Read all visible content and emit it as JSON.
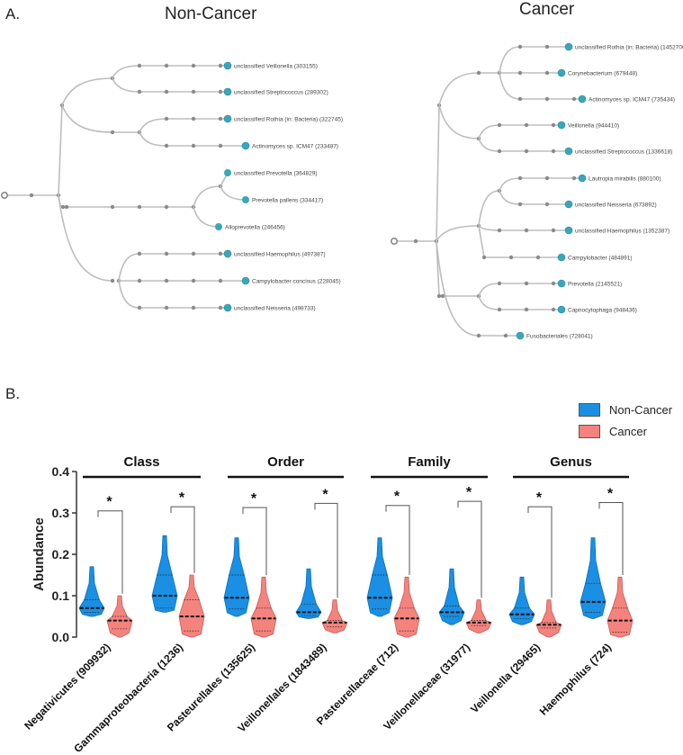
{
  "panel_a": {
    "label": "A.",
    "non_cancer": {
      "title": "Non-Cancer",
      "leaves": [
        "unclassified Veillonella (303155)",
        "unclassified Streptococcus (289302)",
        "unclassified Rothia (in: Bacteria) (322745)",
        "Actinomyces sp. ICM47 (233487)",
        "unclassified Prevotella (364829)",
        "Prevotella pallens (334417)",
        "Alloprevotella (246456)",
        "unclassified Haemophilus (497387)",
        "Campylobacter concisus (228045)",
        "unclassified Neisseria (498733)"
      ]
    },
    "cancer": {
      "title": "Cancer",
      "leaves": [
        "unclassified Rothia (in: Bacteria) (1452700)",
        "Corynebacterium (679448)",
        "Actinomyces sp. ICM47 (735434)",
        "Veillonella (944410)",
        "unclassified Streptococcus (1336618)",
        "Lautropia mirabilis (880100)",
        "unclassified Neisseria (673892)",
        "unclassified Haemophilus (1352387)",
        "Campylobacter (484891)",
        "Prevotella (2145521)",
        "Capnocytophaga (948436)",
        "Fusobacteriales (728041)"
      ]
    },
    "colors": {
      "leaf": "#3aa6b9",
      "node": "#8a8a8a",
      "edge": "#bdbdbd"
    }
  },
  "panel_b": {
    "label": "B."
  },
  "chart_data": {
    "type": "violin",
    "ylabel": "Abundance",
    "ylim": [
      0,
      0.4
    ],
    "yticks": [
      "0.0",
      "0.1",
      "0.2",
      "0.3",
      "0.4"
    ],
    "ytick_values": [
      0,
      0.1,
      0.2,
      0.3,
      0.4
    ],
    "legend": {
      "placement": "top-right",
      "entries": [
        {
          "name": "Non-Cancer",
          "color": "#1a8fe3"
        },
        {
          "name": "Cancer",
          "color": "#f4837d"
        }
      ]
    },
    "groups": [
      {
        "label": "Class",
        "categories": [
          0,
          1
        ]
      },
      {
        "label": "Order",
        "categories": [
          2,
          3
        ]
      },
      {
        "label": "Family",
        "categories": [
          4,
          5
        ]
      },
      {
        "label": "Genus",
        "categories": [
          6,
          7
        ]
      }
    ],
    "categories": [
      "Negativicutes (909932)",
      "Gammaproteobacteria (1236)",
      "Pasteurellales (135625)",
      "Veillonellales (1843489)",
      "Pasteurellaceae (712)",
      "Veillonellaceae (31977)",
      "Veillonella (29465)",
      "Haemophilus (724)"
    ],
    "series": [
      {
        "name": "Non-Cancer",
        "min": [
          0.05,
          0.06,
          0.05,
          0.045,
          0.05,
          0.03,
          0.03,
          0.045
        ],
        "q1": [
          0.06,
          0.07,
          0.068,
          0.052,
          0.068,
          0.05,
          0.045,
          0.06
        ],
        "median": [
          0.07,
          0.1,
          0.095,
          0.06,
          0.095,
          0.06,
          0.055,
          0.085
        ],
        "q3": [
          0.09,
          0.15,
          0.15,
          0.08,
          0.15,
          0.075,
          0.07,
          0.13
        ],
        "max": [
          0.17,
          0.245,
          0.24,
          0.165,
          0.24,
          0.165,
          0.145,
          0.24
        ]
      },
      {
        "name": "Cancer",
        "min": [
          0.0,
          0.0,
          0.0,
          0.01,
          0.0,
          0.01,
          0.0,
          0.0
        ],
        "q1": [
          0.02,
          0.015,
          0.015,
          0.025,
          0.015,
          0.028,
          0.022,
          0.012
        ],
        "median": [
          0.04,
          0.05,
          0.045,
          0.035,
          0.045,
          0.035,
          0.03,
          0.04
        ],
        "q3": [
          0.05,
          0.09,
          0.07,
          0.04,
          0.07,
          0.04,
          0.035,
          0.07
        ],
        "max": [
          0.1,
          0.15,
          0.145,
          0.09,
          0.145,
          0.09,
          0.09,
          0.145
        ]
      }
    ],
    "significance": {
      "marker": "*",
      "bracket_values": [
        0.305,
        0.315,
        0.313,
        0.323,
        0.318,
        0.328,
        0.315,
        0.325
      ]
    }
  }
}
